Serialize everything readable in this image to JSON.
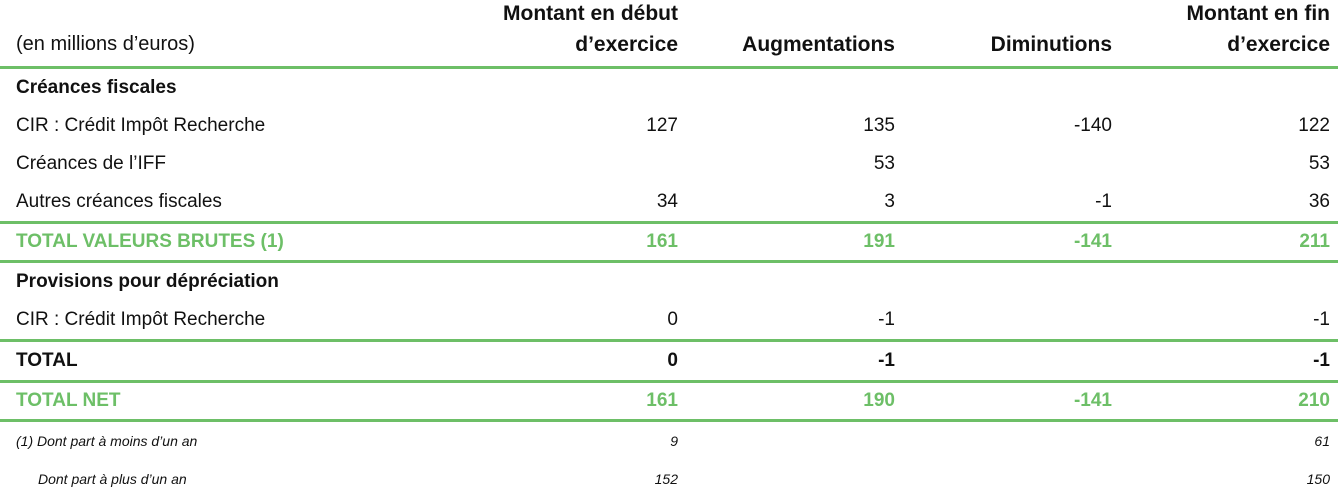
{
  "table": {
    "unit_label": "(en millions d’euros)",
    "headers": {
      "col1": "Montant en début d’exercice",
      "col2": "Augmentations",
      "col3": "Diminutions",
      "col4": "Montant en fin d’exercice"
    },
    "sections": {
      "fiscal": "Créances fiscales",
      "provisions": "Provisions pour dépréciation"
    },
    "rows": [
      {
        "label": "CIR : Crédit Impôt Recherche",
        "c1": "127",
        "c2": "135",
        "c3": "-140",
        "c4": "122"
      },
      {
        "label": "Créances de l’IFF",
        "c1": "",
        "c2": "53",
        "c3": "",
        "c4": "53"
      },
      {
        "label": "Autres créances fiscales",
        "c1": "34",
        "c2": "3",
        "c3": "-1",
        "c4": "36"
      }
    ],
    "total_gross": {
      "label": "TOTAL VALEURS BRUTES (1)",
      "c1": "161",
      "c2": "191",
      "c3": "-141",
      "c4": "211"
    },
    "provision_rows": [
      {
        "label": "CIR : Crédit Impôt Recherche",
        "c1": "0",
        "c2": "-1",
        "c3": "",
        "c4": "-1"
      }
    ],
    "total_prov": {
      "label": "TOTAL",
      "c1": "0",
      "c2": "-1",
      "c3": "",
      "c4": "-1"
    },
    "total_net": {
      "label": "TOTAL NET",
      "c1": "161",
      "c2": "190",
      "c3": "-141",
      "c4": "210"
    },
    "notes": [
      {
        "label": "(1) Dont part à moins d’un an",
        "c1": "9",
        "c2": "",
        "c3": "",
        "c4": "61"
      },
      {
        "label": "Dont part à plus d’un an",
        "c1": "152",
        "c2": "",
        "c3": "",
        "c4": "150"
      }
    ],
    "colors": {
      "accent_green": "#6dbf67",
      "text": "#111111"
    }
  }
}
